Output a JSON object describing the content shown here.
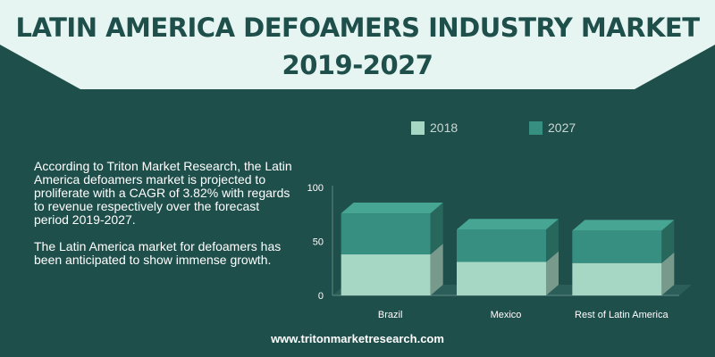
{
  "header": {
    "title_line1": "LATIN AMERICA DEFOAMERS INDUSTRY MARKET",
    "title_line2": "2019-2027"
  },
  "description": {
    "paragraph1": "According to Triton Market Research, the Latin America defoamers market is projected to proliferate with a CAGR of 3.82% with regards to revenue  respectively over the forecast period 2019-2027.",
    "paragraph2": "The Latin America market for defoamers has been anticipated to show immense growth."
  },
  "footer": {
    "url": "www.tritonmarketresearch.com"
  },
  "colors": {
    "background": "#1f4f4b",
    "banner": "#e6f5f1",
    "series_2018": "#a6d6c4",
    "series_2027": "#368f80"
  },
  "chart_data": {
    "type": "bar",
    "stacked": true,
    "categories": [
      "Brazil",
      "Mexico",
      "Rest of Latin America"
    ],
    "series": [
      {
        "name": "2018",
        "values": [
          38,
          31,
          30
        ]
      },
      {
        "name": "2027",
        "values": [
          38,
          30,
          30
        ]
      }
    ],
    "yticks": [
      "0",
      "50",
      "100"
    ],
    "ylim": [
      0,
      100
    ],
    "legend": "top",
    "grid": false
  }
}
